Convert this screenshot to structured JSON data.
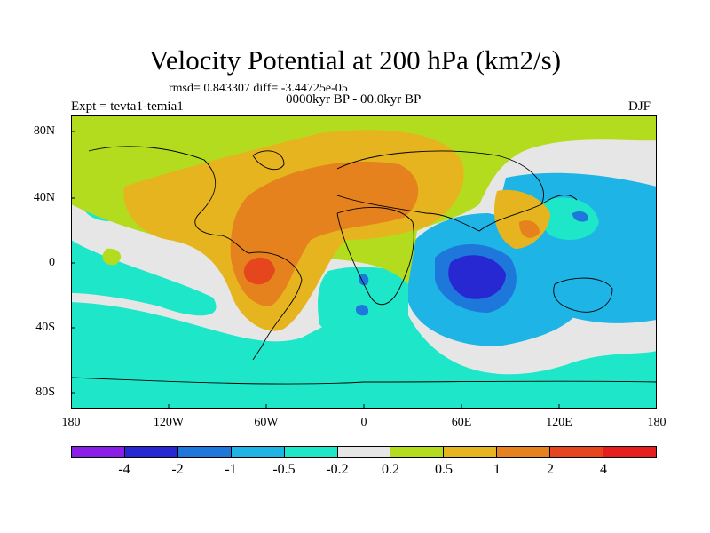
{
  "title": "Velocity Potential at 200 hPa (km2/s)",
  "stats": "rmsd= 0.843307 diff= -3.44725e-05",
  "period": "0000kyr BP - 00.0kyr BP",
  "experiment": "Expt = tevta1-temia1",
  "season": "DJF",
  "lat_labels": [
    "80N",
    "40N",
    "0",
    "40S",
    "80S"
  ],
  "lon_labels": [
    "180",
    "120W",
    "60W",
    "0",
    "60E",
    "120E",
    "180"
  ],
  "colorbar": {
    "colors": [
      "#8a1ee6",
      "#2828d2",
      "#1e78dc",
      "#1eb4e6",
      "#1ee6c8",
      "#e6e6e6",
      "#b4dc1e",
      "#e6b41e",
      "#e6821e",
      "#e6461e",
      "#e61e1e"
    ],
    "labels": [
      "-4",
      "-2",
      "-1",
      "-0.5",
      "-0.2",
      "0.2",
      "0.5",
      "1",
      "2",
      "4"
    ]
  }
}
